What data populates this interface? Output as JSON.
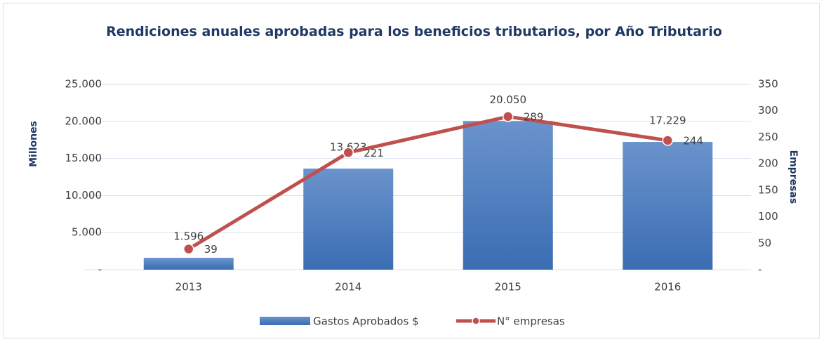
{
  "chart_data": {
    "type": "bar_line",
    "title": "Rendiciones anuales aprobadas para los beneficios tributarios, por Año Tributario",
    "ylabel": "Millones",
    "y2label": "Empresas",
    "categories": [
      "2013",
      "2014",
      "2015",
      "2016"
    ],
    "series": [
      {
        "name": "Gastos Aprobados $",
        "type": "bar",
        "color": "#4a7ebf",
        "values": [
          1596,
          13623,
          20050,
          17229
        ],
        "value_labels": [
          "1.596",
          "13.623",
          "20.050",
          "17.229"
        ]
      },
      {
        "name": "N° empresas",
        "type": "line",
        "axis": "y2",
        "color": "#c0504d",
        "values": [
          39,
          221,
          289,
          244
        ]
      }
    ],
    "ylim": [
      0,
      25000
    ],
    "yticks": [
      {
        "value": 0,
        "label": "-"
      },
      {
        "value": 5000,
        "label": "5.000"
      },
      {
        "value": 10000,
        "label": "10.000"
      },
      {
        "value": 15000,
        "label": "15.000"
      },
      {
        "value": 20000,
        "label": "20.000"
      },
      {
        "value": 25000,
        "label": "25.000"
      }
    ],
    "y2lim": [
      0,
      350
    ],
    "y2ticks": [
      {
        "value": 0,
        "label": "-"
      },
      50,
      100,
      150,
      200,
      250,
      300,
      350
    ],
    "grid": true
  }
}
